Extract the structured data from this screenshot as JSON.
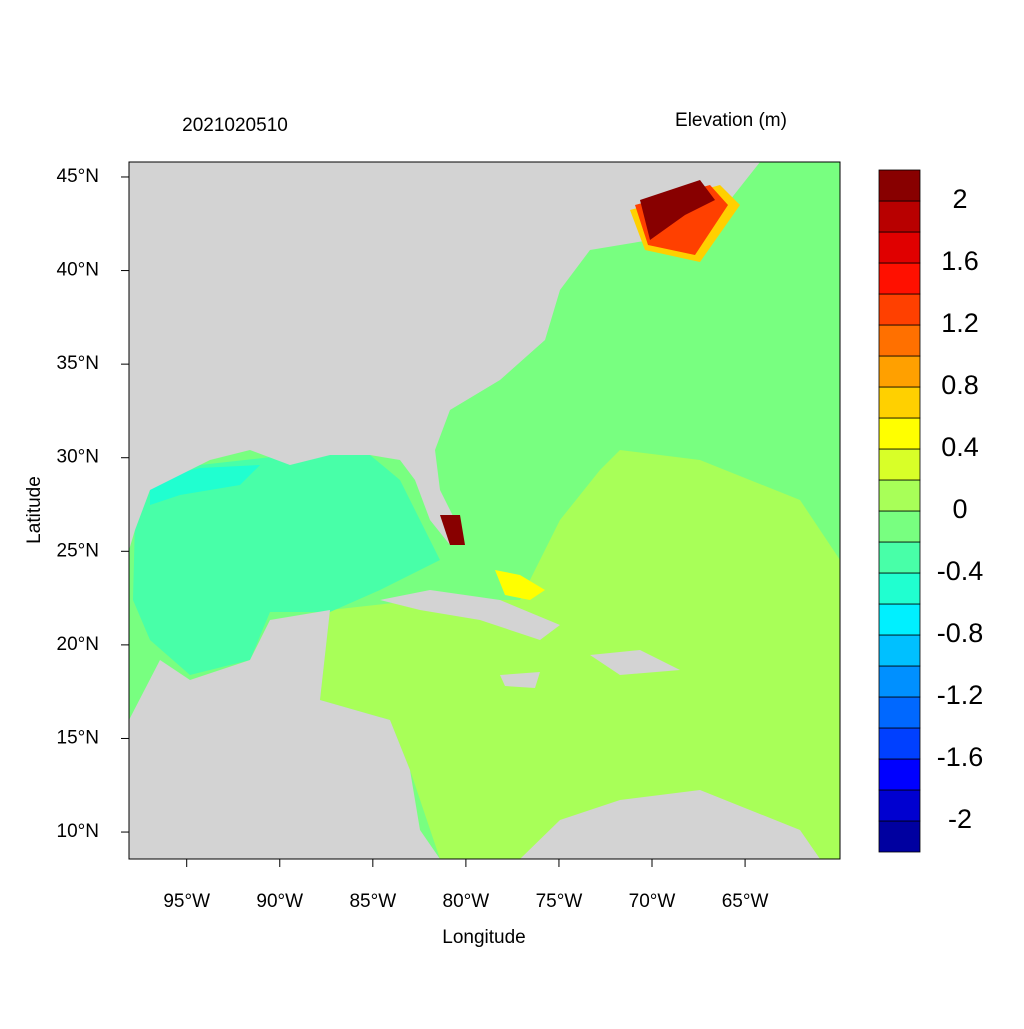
{
  "chart_data": {
    "type": "map",
    "title": "2021020510",
    "subtitle": "Elevation (m)",
    "xlabel": "Longitude",
    "ylabel": "Latitude",
    "xlim": [
      -98.1,
      -59.9
    ],
    "ylim": [
      8.56,
      45.8
    ],
    "xticks": [
      {
        "value": -95,
        "label": "95°W"
      },
      {
        "value": -90,
        "label": "90°W"
      },
      {
        "value": -85,
        "label": "85°W"
      },
      {
        "value": -80,
        "label": "80°W"
      },
      {
        "value": -75,
        "label": "75°W"
      },
      {
        "value": -70,
        "label": "70°W"
      },
      {
        "value": -65,
        "label": "65°W"
      }
    ],
    "yticks": [
      {
        "value": 10,
        "label": "10°N"
      },
      {
        "value": 15,
        "label": "15°N"
      },
      {
        "value": 20,
        "label": "20°N"
      },
      {
        "value": 25,
        "label": "25°N"
      },
      {
        "value": 30,
        "label": "30°N"
      },
      {
        "value": 35,
        "label": "35°N"
      },
      {
        "value": 40,
        "label": "40°N"
      },
      {
        "value": 45,
        "label": "45°N"
      }
    ],
    "colorbar": {
      "lim": [
        -2.2,
        2.2
      ],
      "ticks": [
        -2,
        -1.6,
        -1.2,
        -0.8,
        -0.4,
        0,
        0.4,
        0.8,
        1.2,
        1.6,
        2
      ],
      "colors": [
        "#0000a0",
        "#0000d0",
        "#0000ff",
        "#0040ff",
        "#0068ff",
        "#0090ff",
        "#00c0ff",
        "#00f0ff",
        "#20ffd0",
        "#48ffa8",
        "#78ff80",
        "#a8ff58",
        "#d8ff28",
        "#ffff00",
        "#ffd000",
        "#ffa000",
        "#ff7000",
        "#ff4000",
        "#ff1000",
        "#e00000",
        "#b80000",
        "#880000"
      ]
    }
  }
}
